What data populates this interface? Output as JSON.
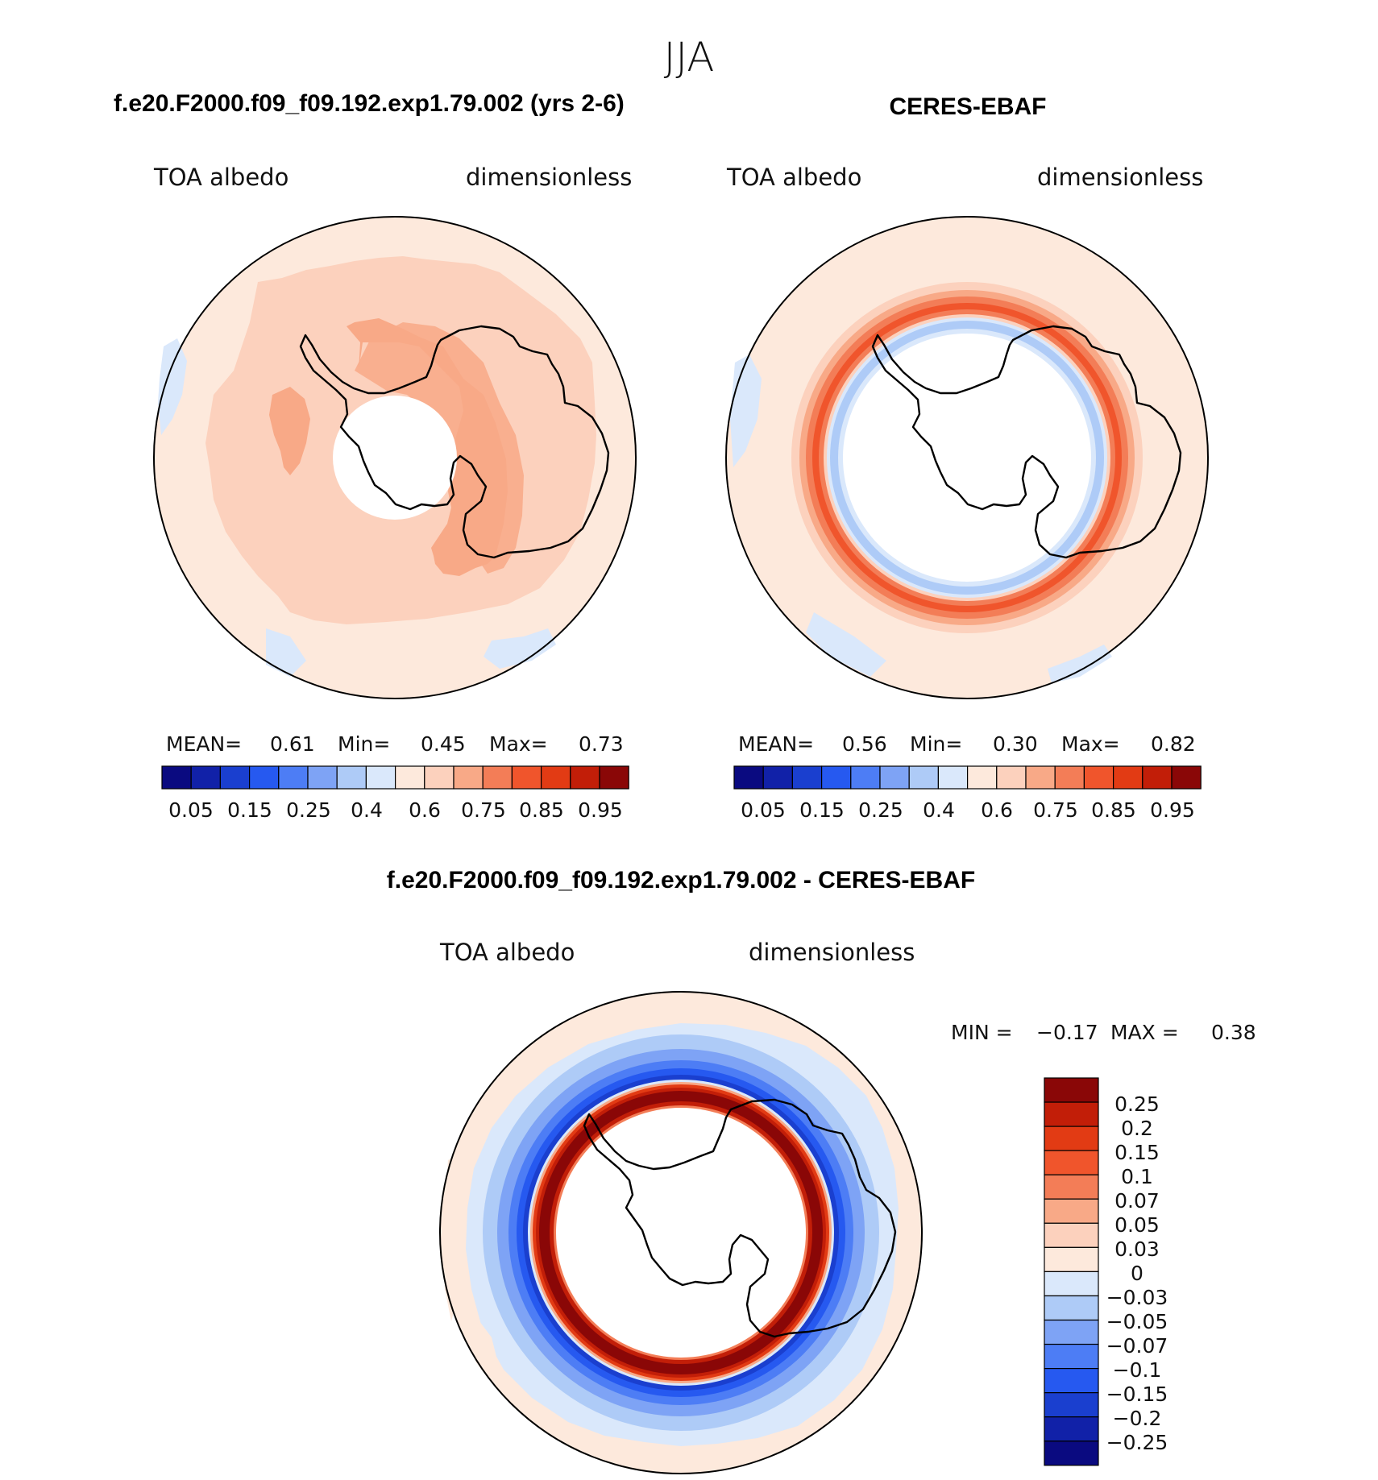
{
  "figure": {
    "season": "JJA"
  },
  "colors": {
    "seq": [
      "#0a0a80",
      "#1121a8",
      "#1a3fcf",
      "#2659f0",
      "#4d7df5",
      "#7ea3f5",
      "#aecbf7",
      "#dae8fb",
      "#fde9dc",
      "#fcd1bd",
      "#f8a987",
      "#f37d57",
      "#f0552c",
      "#e23b14",
      "#c21e08",
      "#8a0707"
    ],
    "div": [
      "#8a0707",
      "#c21e08",
      "#e23b14",
      "#f0552c",
      "#f37d57",
      "#f8a987",
      "#fcd1bd",
      "#fde9dc",
      "#dae8fb",
      "#aecbf7",
      "#7ea3f5",
      "#4d7df5",
      "#2659f0",
      "#1a3fcf",
      "#1121a8",
      "#0a0a80"
    ]
  },
  "panels": [
    {
      "title": "f.e20.F2000.f09_f09.192.exp1.79.002 (yrs 2-6)",
      "var_label": "TOA albedo",
      "units": "dimensionless",
      "stats": {
        "mean_label": "MEAN=",
        "mean": "0.61",
        "min_label": "Min=",
        "min": "0.45",
        "max_label": "Max=",
        "max": "0.73"
      },
      "colorbar_ticks": [
        "0.05",
        "0.15",
        "0.25",
        "0.4",
        "0.6",
        "0.75",
        "0.85",
        "0.95"
      ]
    },
    {
      "title": "CERES-EBAF",
      "var_label": "TOA albedo",
      "units": "dimensionless",
      "stats": {
        "mean_label": "MEAN=",
        "mean": "0.56",
        "min_label": "Min=",
        "min": "0.30",
        "max_label": "Max=",
        "max": "0.82"
      },
      "colorbar_ticks": [
        "0.05",
        "0.15",
        "0.25",
        "0.4",
        "0.6",
        "0.75",
        "0.85",
        "0.95"
      ]
    }
  ],
  "diff_panel": {
    "title": "f.e20.F2000.f09_f09.192.exp1.79.002 - CERES-EBAF",
    "var_label": "TOA albedo",
    "units": "dimensionless",
    "stats": {
      "min_label": "MIN =",
      "min": "−0.17",
      "max_label": "MAX =",
      "max": "0.38"
    },
    "colorbar_ticks": [
      "0.25",
      "0.2",
      "0.15",
      "0.1",
      "0.07",
      "0.05",
      "0.03",
      "0",
      "−0.03",
      "−0.05",
      "−0.07",
      "−0.1",
      "−0.15",
      "−0.2",
      "−0.25"
    ]
  }
}
